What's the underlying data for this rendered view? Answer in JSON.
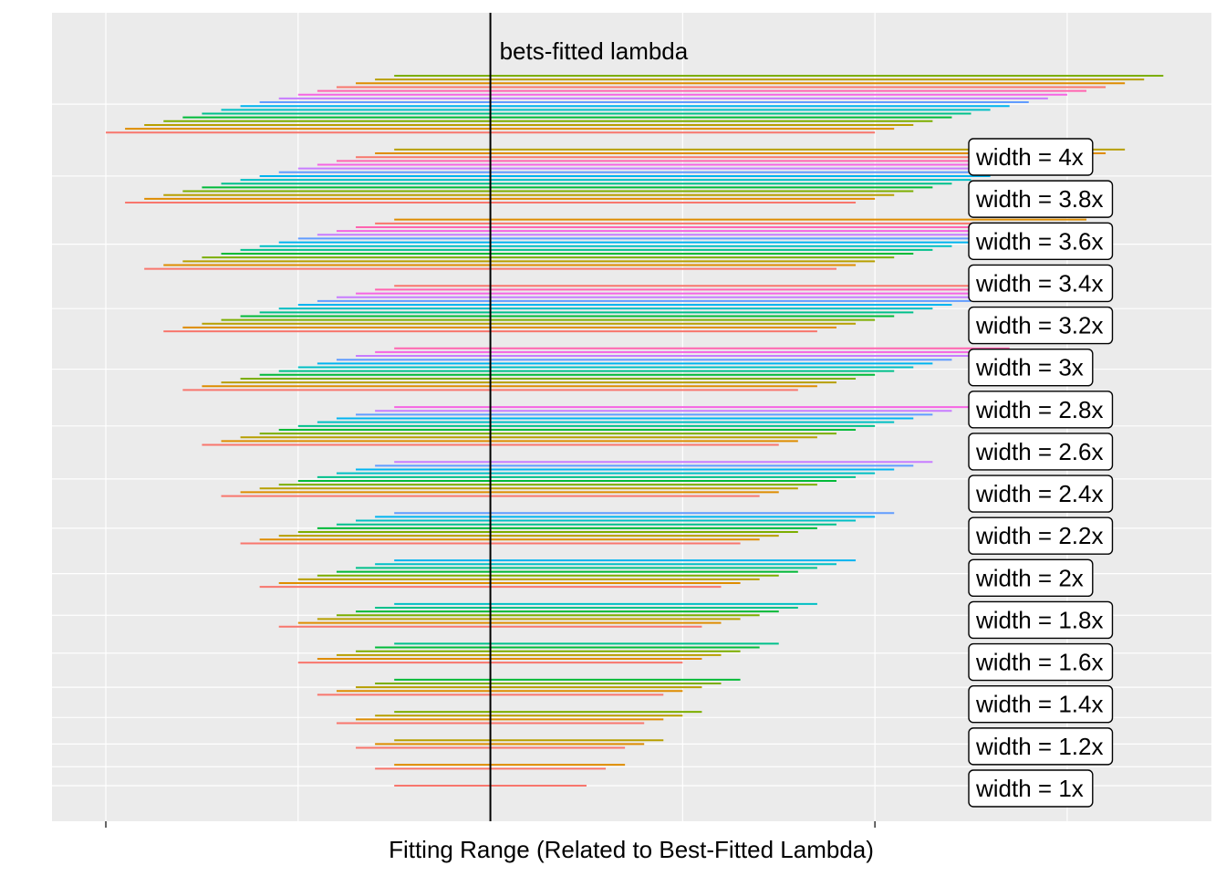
{
  "chart_data": {
    "type": "bar",
    "xlabel": "Fitting Range (Related to Best-Fitted Lambda)",
    "reference_line": {
      "x": 0,
      "label": "bets-fitted lambda"
    },
    "x_break_ticks": [
      -2,
      2
    ],
    "x_gridlines": [
      -2,
      -1,
      0,
      1,
      2,
      3
    ],
    "xlim": [
      -2.28,
      3.75
    ],
    "groups": [
      {
        "label": "width = 1x",
        "ranges": [
          [
            -0.5,
            0.5
          ]
        ]
      },
      {
        "label": "width = 1.2x",
        "ranges": [
          [
            -0.6,
            0.6
          ],
          [
            -0.5,
            0.7
          ]
        ]
      },
      {
        "label": "width = 1.4x",
        "ranges": [
          [
            -0.7,
            0.7
          ],
          [
            -0.6,
            0.8
          ],
          [
            -0.5,
            0.9
          ]
        ]
      },
      {
        "label": "width = 1.6x",
        "ranges": [
          [
            -0.8,
            0.8
          ],
          [
            -0.7,
            0.9
          ],
          [
            -0.6,
            1.0
          ],
          [
            -0.5,
            1.1
          ]
        ]
      },
      {
        "label": "width = 1.8x",
        "ranges": [
          [
            -0.9,
            0.9
          ],
          [
            -0.8,
            1.0
          ],
          [
            -0.7,
            1.1
          ],
          [
            -0.6,
            1.2
          ],
          [
            -0.5,
            1.3
          ]
        ]
      },
      {
        "label": "width = 2x",
        "ranges": [
          [
            -1.0,
            1.0
          ],
          [
            -0.9,
            1.1
          ],
          [
            -0.8,
            1.2
          ],
          [
            -0.7,
            1.3
          ],
          [
            -0.6,
            1.4
          ],
          [
            -0.5,
            1.5
          ]
        ]
      },
      {
        "label": "width = 2.2x",
        "ranges": [
          [
            -1.1,
            1.1
          ],
          [
            -1.0,
            1.2
          ],
          [
            -0.9,
            1.3
          ],
          [
            -0.8,
            1.4
          ],
          [
            -0.7,
            1.5
          ],
          [
            -0.6,
            1.6
          ],
          [
            -0.5,
            1.7
          ]
        ]
      },
      {
        "label": "width = 2.4x",
        "ranges": [
          [
            -1.2,
            1.2
          ],
          [
            -1.1,
            1.3
          ],
          [
            -1.0,
            1.4
          ],
          [
            -0.9,
            1.5
          ],
          [
            -0.8,
            1.6
          ],
          [
            -0.7,
            1.7
          ],
          [
            -0.6,
            1.8
          ],
          [
            -0.5,
            1.9
          ]
        ]
      },
      {
        "label": "width = 2.6x",
        "ranges": [
          [
            -1.3,
            1.3
          ],
          [
            -1.2,
            1.4
          ],
          [
            -1.1,
            1.5
          ],
          [
            -1.0,
            1.6
          ],
          [
            -0.9,
            1.7
          ],
          [
            -0.8,
            1.8
          ],
          [
            -0.7,
            1.9
          ],
          [
            -0.6,
            2.0
          ],
          [
            -0.5,
            2.1
          ]
        ]
      },
      {
        "label": "width = 2.8x",
        "ranges": [
          [
            -1.4,
            1.4
          ],
          [
            -1.3,
            1.5
          ],
          [
            -1.2,
            1.6
          ],
          [
            -1.1,
            1.7
          ],
          [
            -1.0,
            1.8
          ],
          [
            -0.9,
            1.9
          ],
          [
            -0.8,
            2.0
          ],
          [
            -0.7,
            2.1
          ],
          [
            -0.6,
            2.2
          ],
          [
            -0.5,
            2.3
          ]
        ]
      },
      {
        "label": "width = 3x",
        "ranges": [
          [
            -1.5,
            1.5
          ],
          [
            -1.4,
            1.6
          ],
          [
            -1.3,
            1.7
          ],
          [
            -1.2,
            1.8
          ],
          [
            -1.1,
            1.9
          ],
          [
            -1.0,
            2.0
          ],
          [
            -0.9,
            2.1
          ],
          [
            -0.8,
            2.2
          ],
          [
            -0.7,
            2.3
          ],
          [
            -0.6,
            2.4
          ],
          [
            -0.5,
            2.5
          ]
        ]
      },
      {
        "label": "width = 3.2x",
        "ranges": [
          [
            -1.6,
            1.6
          ],
          [
            -1.5,
            1.7
          ],
          [
            -1.4,
            1.8
          ],
          [
            -1.3,
            1.9
          ],
          [
            -1.2,
            2.0
          ],
          [
            -1.1,
            2.1
          ],
          [
            -1.0,
            2.2
          ],
          [
            -0.9,
            2.3
          ],
          [
            -0.8,
            2.4
          ],
          [
            -0.7,
            2.5
          ],
          [
            -0.6,
            2.6
          ],
          [
            -0.5,
            2.7
          ]
        ]
      },
      {
        "label": "width = 3.4x",
        "ranges": [
          [
            -1.7,
            1.7
          ],
          [
            -1.6,
            1.8
          ],
          [
            -1.5,
            1.9
          ],
          [
            -1.4,
            2.0
          ],
          [
            -1.3,
            2.1
          ],
          [
            -1.2,
            2.2
          ],
          [
            -1.1,
            2.3
          ],
          [
            -1.0,
            2.4
          ],
          [
            -0.9,
            2.5
          ],
          [
            -0.8,
            2.6
          ],
          [
            -0.7,
            2.7
          ],
          [
            -0.6,
            2.8
          ],
          [
            -0.5,
            2.9
          ]
        ]
      },
      {
        "label": "width = 3.6x",
        "ranges": [
          [
            -1.8,
            1.8
          ],
          [
            -1.7,
            1.9
          ],
          [
            -1.6,
            2.0
          ],
          [
            -1.5,
            2.1
          ],
          [
            -1.4,
            2.2
          ],
          [
            -1.3,
            2.3
          ],
          [
            -1.2,
            2.4
          ],
          [
            -1.1,
            2.5
          ],
          [
            -1.0,
            2.6
          ],
          [
            -0.9,
            2.7
          ],
          [
            -0.8,
            2.8
          ],
          [
            -0.7,
            2.9
          ],
          [
            -0.6,
            3.0
          ],
          [
            -0.5,
            3.1
          ]
        ]
      },
      {
        "label": "width = 3.8x",
        "ranges": [
          [
            -1.9,
            1.9
          ],
          [
            -1.8,
            2.0
          ],
          [
            -1.7,
            2.1
          ],
          [
            -1.6,
            2.2
          ],
          [
            -1.5,
            2.3
          ],
          [
            -1.4,
            2.4
          ],
          [
            -1.3,
            2.5
          ],
          [
            -1.2,
            2.6
          ],
          [
            -1.1,
            2.7
          ],
          [
            -1.0,
            2.8
          ],
          [
            -0.9,
            2.9
          ],
          [
            -0.8,
            3.0
          ],
          [
            -0.7,
            3.1
          ],
          [
            -0.6,
            3.2
          ],
          [
            -0.5,
            3.3
          ]
        ]
      },
      {
        "label": "width = 4x",
        "ranges": [
          [
            -2.0,
            2.0
          ],
          [
            -1.9,
            2.1
          ],
          [
            -1.8,
            2.2
          ],
          [
            -1.7,
            2.3
          ],
          [
            -1.6,
            2.4
          ],
          [
            -1.5,
            2.5
          ],
          [
            -1.4,
            2.6
          ],
          [
            -1.3,
            2.7
          ],
          [
            -1.2,
            2.8
          ],
          [
            -1.1,
            2.9
          ],
          [
            -1.0,
            3.0
          ],
          [
            -0.9,
            3.1
          ],
          [
            -0.8,
            3.2
          ],
          [
            -0.7,
            3.3
          ],
          [
            -0.6,
            3.4
          ],
          [
            -0.5,
            3.5
          ]
        ]
      }
    ],
    "colors": [
      "#F8766D",
      "#DE8C00",
      "#B79F00",
      "#7CAE00",
      "#00BA38",
      "#00C08B",
      "#00BFC4",
      "#00B4F0",
      "#619CFF",
      "#C77CFF",
      "#F564E3",
      "#FF64B0"
    ],
    "panel_color": "#EBEBEB",
    "grid_color": "#FFFFFF"
  }
}
